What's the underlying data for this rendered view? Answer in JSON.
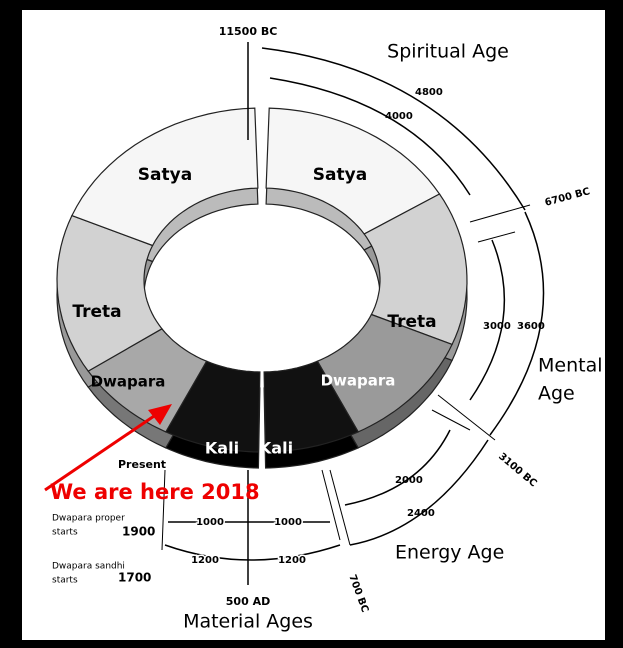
{
  "top_date": "11500 BC",
  "spiritual_age": "Spiritual Age",
  "spiritual_arc": {
    "outer": "4800",
    "inner": "4000"
  },
  "date_6700": "6700 BC",
  "segments": {
    "satya_left": "Satya",
    "satya_right": "Satya",
    "treta_left": "Treta",
    "treta_right": "Treta",
    "dwapara_left": "Dwapara",
    "dwapara_right": "Dwapara",
    "kali_left": "Kali",
    "kali_right": "Kali"
  },
  "mental_arc": {
    "inner": "3000",
    "outer": "3600"
  },
  "mental_age": {
    "line1": "Mental",
    "line2": "Age"
  },
  "date_3100": "3100 BC",
  "present": "Present",
  "we_are_here": "We are here 2018",
  "energy_arc": {
    "inner": "2000",
    "outer": "2400"
  },
  "energy_age": "Energy Age",
  "dwapara_proper": {
    "line1": "Dwapara proper",
    "line2": "starts",
    "year": "1900"
  },
  "dwapara_sandhi": {
    "line1": "Dwapara sandhi",
    "line2": "starts",
    "year": "1700"
  },
  "kali_arc": {
    "inner_left": "1000",
    "inner_right": "1000",
    "outer_left": "1200",
    "outer_right": "1200"
  },
  "date_700": "700 BC",
  "date_500": "500 AD",
  "material_ages": "Material Ages"
}
